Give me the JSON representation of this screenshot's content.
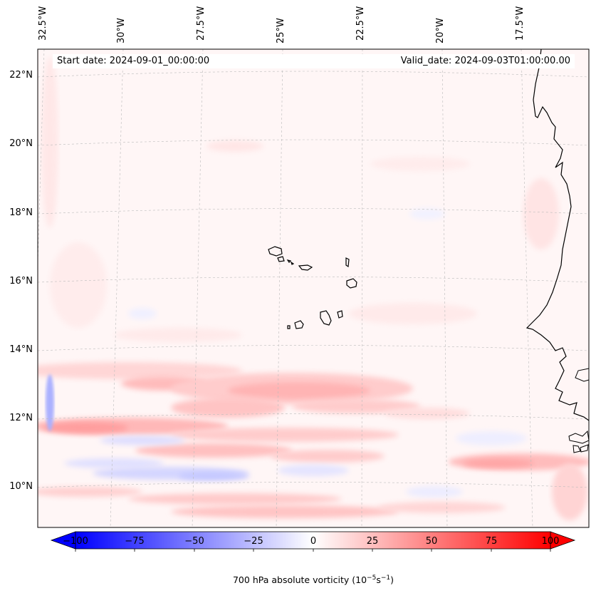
{
  "header": {
    "start_label": "Start date: 2024-09-01_00:00:00",
    "valid_label": "Valid_date: 2024-09-03T01:00:00.00"
  },
  "axes": {
    "longitude_ticks": [
      "32.5°W",
      "30°W",
      "27.5°W",
      "25°W",
      "22.5°W",
      "20°W",
      "17.5°W"
    ],
    "latitude_ticks": [
      "22°N",
      "20°N",
      "18°N",
      "16°N",
      "14°N",
      "12°N",
      "10°N"
    ]
  },
  "colorbar": {
    "label_main": "700 hPa absolute vorticity (10",
    "label_exp1": "−5",
    "label_mid": "s",
    "label_exp2": "−1",
    "label_end": ")",
    "ticks": [
      "−100",
      "−75",
      "−50",
      "−25",
      "0",
      "25",
      "50",
      "75",
      "100"
    ],
    "min": -100,
    "max": 100,
    "negative_color": "#0000ff",
    "positive_color": "#ff0000"
  },
  "colors": {
    "coastline": "#000000",
    "gridline": "#bbbbbb",
    "background_field": "#fff6f6"
  }
}
